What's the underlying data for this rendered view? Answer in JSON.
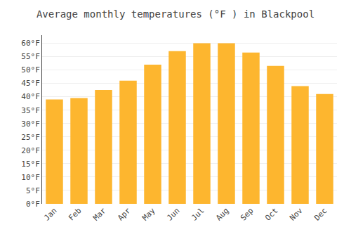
{
  "chart_data": {
    "type": "bar",
    "title": "Average monthly temperatures (°F ) in Blackpool",
    "categories": [
      "Jan",
      "Feb",
      "Mar",
      "Apr",
      "May",
      "Jun",
      "Jul",
      "Aug",
      "Sep",
      "Oct",
      "Nov",
      "Dec"
    ],
    "values": [
      39,
      39.5,
      42.5,
      46,
      52,
      57,
      60,
      60,
      56.5,
      51.5,
      44,
      41
    ],
    "color": "#FDB62F",
    "ylim": [
      0,
      63
    ],
    "yticks": [
      {
        "value": 0,
        "label": "0°F"
      },
      {
        "value": 5,
        "label": "5°F"
      },
      {
        "value": 10,
        "label": "10°F"
      },
      {
        "value": 15,
        "label": "15°F"
      },
      {
        "value": 20,
        "label": "20°F"
      },
      {
        "value": 25,
        "label": "25°F"
      },
      {
        "value": 30,
        "label": "30°F"
      },
      {
        "value": 35,
        "label": "35°F"
      },
      {
        "value": 40,
        "label": "40°F"
      },
      {
        "value": 45,
        "label": "45°F"
      },
      {
        "value": 50,
        "label": "50°F"
      },
      {
        "value": 55,
        "label": "55°F"
      },
      {
        "value": 60,
        "label": "60°F"
      }
    ],
    "grid": true
  }
}
